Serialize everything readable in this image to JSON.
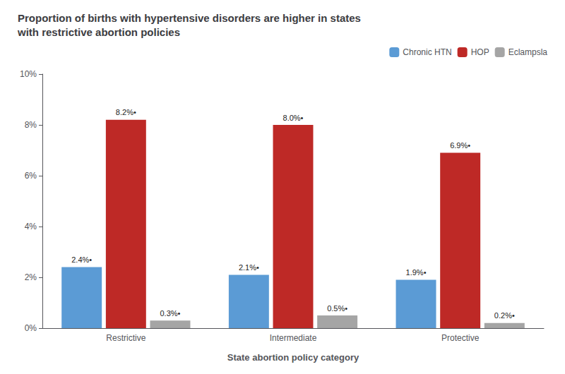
{
  "chart_data": {
    "type": "bar",
    "title": "Proportion of births with hypertensive disorders are higher in states\nwith restrictive abortion policies",
    "categories": [
      "Restrictive",
      "Intermediate",
      "Protective"
    ],
    "series": [
      {
        "name": "Chronic HTN",
        "color": "#5b9bd5",
        "values": [
          2.4,
          2.1,
          1.9
        ],
        "value_labels": [
          "2.4%•",
          "2.1%•",
          "1.9%•"
        ]
      },
      {
        "name": "HOP",
        "color": "#be2926",
        "values": [
          8.2,
          8.0,
          6.9
        ],
        "value_labels": [
          "8.2%•",
          "8.0%•",
          "6.9%•"
        ]
      },
      {
        "name": "Eclampsla",
        "color": "#a5a5a5",
        "values": [
          0.3,
          0.5,
          0.2
        ],
        "value_labels": [
          "0.3%•",
          "0.5%•",
          "0.2%•"
        ]
      }
    ],
    "xlabel": "State abortion policy category",
    "ylim": [
      0,
      10
    ],
    "yticks": [
      {
        "value": 0,
        "label": "0%"
      },
      {
        "value": 2,
        "label": "2%"
      },
      {
        "value": 4,
        "label": "4%"
      },
      {
        "value": 6,
        "label": "6%"
      },
      {
        "value": 8,
        "label": "8%"
      },
      {
        "value": 10,
        "label": "10%"
      }
    ],
    "grid": false,
    "legend": "upper right",
    "data_labels": true
  }
}
